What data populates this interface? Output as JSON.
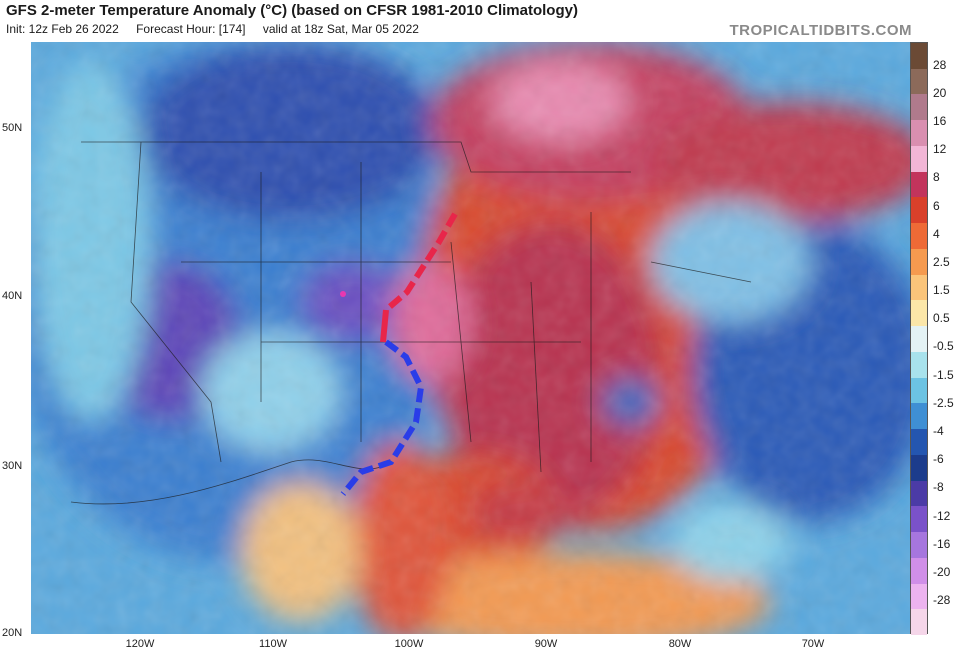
{
  "header": {
    "title": "GFS 2-meter Temperature Anomaly (°C) (based on CFSR 1981-2010 Climatology)",
    "init": "Init: 12z Feb 26 2022",
    "forecast_hour": "Forecast Hour: [174]",
    "valid": "valid at 18z Sat, Mar 05 2022",
    "brand": "TROPICALTIDBITS.COM"
  },
  "map": {
    "lat_labels": [
      "50N",
      "40N",
      "30N",
      "20N"
    ],
    "lon_labels": [
      "120W",
      "110W",
      "100W",
      "90W",
      "80W",
      "70W"
    ]
  },
  "colorbar": {
    "labels": [
      "28",
      "20",
      "16",
      "12",
      "8",
      "6",
      "4",
      "2.5",
      "1.5",
      "0.5",
      "-0.5",
      "-1.5",
      "-2.5",
      "-4",
      "-6",
      "-8",
      "-12",
      "-16",
      "-20",
      "-28"
    ],
    "colors": [
      "#6b4a35",
      "#8c6a5a",
      "#b07a8c",
      "#d98fb0",
      "#f2b6d6",
      "#c2345c",
      "#d9402a",
      "#ee6a36",
      "#f59a4f",
      "#fac47a",
      "#fbe6a8",
      "#e4f2f4",
      "#a8e2ec",
      "#6cc3e3",
      "#3f8fd4",
      "#2456b0",
      "#1c3c8c",
      "#4b3ba6",
      "#7a52c9",
      "#a676de",
      "#d08fe8",
      "#ecb3ef",
      "#f5d6e9"
    ]
  },
  "fronts": [
    {
      "name": "warm-front",
      "color": "#e8264a"
    },
    {
      "name": "cold-front",
      "color": "#2a3de8"
    }
  ]
}
